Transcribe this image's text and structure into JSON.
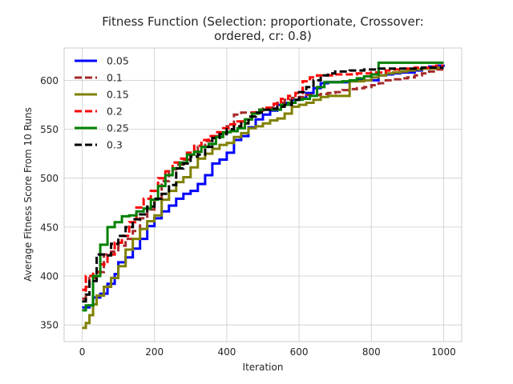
{
  "chart_data": {
    "type": "line",
    "title_lines": [
      "Fitness Function (Selection: proportionate, Crossover:",
      "ordered, cr: 0.8)"
    ],
    "xlabel": "Iteration",
    "ylabel": "Average Fitness Score From 10 Runs",
    "xlim": [
      -50,
      1050
    ],
    "ylim": [
      333,
      633
    ],
    "xticks": [
      0,
      200,
      400,
      600,
      800,
      1000
    ],
    "yticks": [
      350,
      400,
      450,
      500,
      550,
      600
    ],
    "grid": true,
    "legend_position": "top-left",
    "series": [
      {
        "name": "0.05",
        "color": "#0000ff",
        "dash": "",
        "width": 3,
        "x": [
          0,
          20,
          30,
          50,
          70,
          90,
          100,
          120,
          140,
          160,
          180,
          200,
          220,
          240,
          260,
          280,
          300,
          320,
          340,
          360,
          380,
          400,
          420,
          440,
          460,
          480,
          500,
          520,
          540,
          560,
          580,
          600,
          620,
          640,
          660,
          680,
          700,
          720,
          740,
          760,
          780,
          800,
          820,
          840,
          860,
          880,
          900,
          920,
          940,
          960,
          980,
          1000
        ],
        "y": [
          368,
          370,
          378,
          382,
          392,
          402,
          414,
          419,
          428,
          438,
          451,
          459,
          466,
          472,
          479,
          484,
          487,
          494,
          503,
          515,
          519,
          526,
          539,
          543,
          552,
          560,
          565,
          569,
          575,
          577,
          580,
          582,
          587,
          592,
          597,
          598,
          598,
          598,
          599,
          600,
          600,
          600,
          605,
          606,
          607,
          608,
          608,
          610,
          612,
          614,
          615,
          616
        ]
      },
      {
        "name": "0.1",
        "color": "#a52a2a",
        "dash": "9,4",
        "width": 3,
        "x": [
          0,
          10,
          20,
          40,
          60,
          80,
          100,
          120,
          140,
          160,
          180,
          200,
          220,
          240,
          260,
          280,
          300,
          320,
          340,
          360,
          380,
          400,
          420,
          440,
          460,
          480,
          500,
          520,
          540,
          560,
          580,
          600,
          620,
          640,
          660,
          680,
          700,
          720,
          740,
          760,
          780,
          800,
          820,
          840,
          860,
          880,
          900,
          920,
          940,
          960,
          980,
          1000
        ],
        "y": [
          377,
          389,
          398,
          404,
          422,
          425,
          431,
          438,
          446,
          459,
          468,
          478,
          497,
          509,
          514,
          519,
          524,
          532,
          538,
          543,
          546,
          553,
          565,
          567,
          567,
          569,
          571,
          572,
          577,
          580,
          582,
          583,
          585,
          585,
          586,
          587,
          588,
          590,
          591,
          592,
          593,
          595,
          597,
          600,
          601,
          602,
          603,
          605,
          607,
          609,
          611,
          612
        ]
      },
      {
        "name": "0.15",
        "color": "#808000",
        "dash": "",
        "width": 3,
        "x": [
          0,
          10,
          20,
          30,
          40,
          60,
          80,
          100,
          120,
          140,
          160,
          180,
          200,
          220,
          240,
          260,
          280,
          300,
          320,
          340,
          360,
          380,
          400,
          420,
          440,
          460,
          480,
          500,
          520,
          540,
          560,
          580,
          600,
          620,
          640,
          660,
          680,
          700,
          720,
          740,
          760,
          780,
          800,
          820,
          840,
          860,
          880,
          900,
          920,
          940,
          960,
          980,
          1000
        ],
        "y": [
          347,
          352,
          360,
          371,
          380,
          389,
          398,
          410,
          427,
          438,
          448,
          456,
          462,
          478,
          487,
          496,
          501,
          511,
          520,
          525,
          530,
          534,
          536,
          542,
          546,
          551,
          553,
          556,
          559,
          561,
          566,
          573,
          575,
          577,
          580,
          583,
          584,
          584,
          584,
          599,
          599,
          600,
          603,
          605,
          607,
          608,
          609,
          610,
          611,
          612,
          612,
          613,
          613
        ]
      },
      {
        "name": "0.2",
        "color": "#ff0000",
        "dash": "9,4",
        "width": 3,
        "x": [
          0,
          10,
          30,
          50,
          70,
          90,
          110,
          130,
          150,
          170,
          190,
          210,
          230,
          250,
          270,
          290,
          310,
          330,
          350,
          370,
          390,
          410,
          430,
          450,
          470,
          490,
          510,
          530,
          550,
          570,
          590,
          610,
          630,
          650,
          670,
          700,
          720,
          740,
          760,
          780,
          800,
          820,
          840,
          860,
          880,
          900,
          920,
          940,
          960,
          980,
          1000
        ],
        "y": [
          386,
          400,
          404,
          412,
          422,
          434,
          441,
          455,
          470,
          479,
          487,
          500,
          507,
          516,
          520,
          526,
          533,
          539,
          543,
          547,
          551,
          555,
          558,
          560,
          567,
          570,
          572,
          576,
          581,
          584,
          587,
          599,
          603,
          605,
          605,
          606,
          606,
          606,
          607,
          607,
          608,
          608,
          610,
          611,
          612,
          612,
          613,
          613,
          614,
          615,
          615
        ]
      },
      {
        "name": "0.25",
        "color": "#008000",
        "dash": "",
        "width": 3,
        "x": [
          0,
          10,
          30,
          50,
          70,
          90,
          110,
          130,
          150,
          170,
          190,
          210,
          230,
          250,
          270,
          290,
          310,
          330,
          350,
          370,
          390,
          410,
          430,
          450,
          470,
          490,
          510,
          530,
          550,
          570,
          590,
          610,
          630,
          650,
          670,
          700,
          720,
          740,
          760,
          780,
          800,
          820,
          840,
          860,
          880,
          900,
          920,
          940,
          960,
          980,
          1000
        ],
        "y": [
          365,
          370,
          400,
          432,
          450,
          455,
          461,
          462,
          466,
          469,
          478,
          492,
          503,
          510,
          516,
          524,
          527,
          532,
          535,
          542,
          547,
          548,
          551,
          560,
          566,
          570,
          570,
          570,
          575,
          577,
          580,
          581,
          584,
          593,
          598,
          598,
          599,
          600,
          602,
          604,
          606,
          618,
          618,
          618,
          618,
          618,
          618,
          618,
          618,
          618,
          618
        ]
      },
      {
        "name": "0.3",
        "color": "#000000",
        "dash": "9,4",
        "width": 3,
        "x": [
          0,
          10,
          20,
          40,
          60,
          80,
          100,
          120,
          140,
          160,
          180,
          200,
          220,
          240,
          260,
          280,
          300,
          320,
          340,
          360,
          380,
          400,
          420,
          440,
          460,
          480,
          500,
          520,
          540,
          560,
          580,
          600,
          620,
          640,
          660,
          680,
          700,
          720,
          740,
          760,
          780,
          800,
          820,
          840,
          860,
          880,
          900,
          920,
          940,
          960,
          980,
          1000
        ],
        "y": [
          374,
          381,
          395,
          422,
          421,
          433,
          441,
          450,
          458,
          463,
          471,
          479,
          484,
          493,
          510,
          515,
          522,
          524,
          532,
          541,
          545,
          550,
          553,
          556,
          563,
          567,
          570,
          571,
          573,
          575,
          580,
          588,
          593,
          600,
          605,
          607,
          609,
          609,
          610,
          610,
          611,
          611,
          612,
          612,
          612,
          612,
          612,
          612,
          613,
          613,
          613,
          613
        ]
      }
    ]
  }
}
